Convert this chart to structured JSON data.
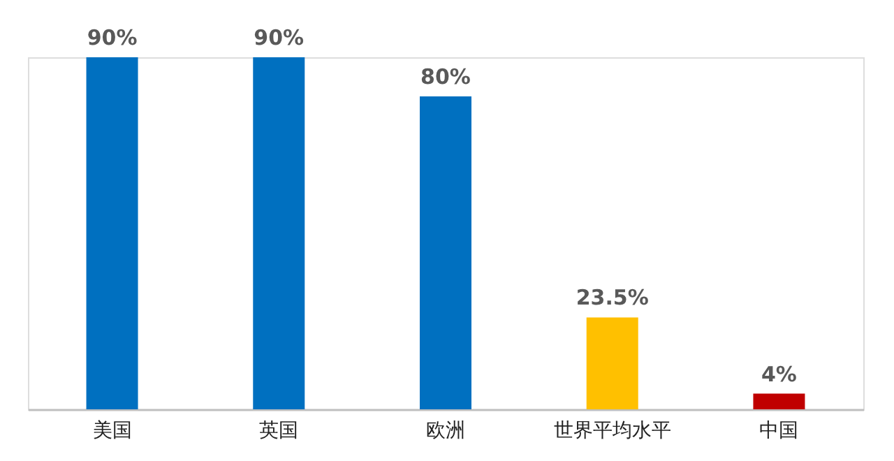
{
  "chart_data": {
    "type": "bar",
    "categories": [
      "美国",
      "英国",
      "欧洲",
      "世界平均水平",
      "中国"
    ],
    "values": [
      90,
      90,
      80,
      23.5,
      4
    ],
    "colors": [
      "#0070c0",
      "#0070c0",
      "#0070c0",
      "#ffc000",
      "#c00000"
    ],
    "value_labels": [
      "90%",
      "90%",
      "80%",
      "23.5%",
      "4%"
    ],
    "grid": false,
    "legend": false
  }
}
